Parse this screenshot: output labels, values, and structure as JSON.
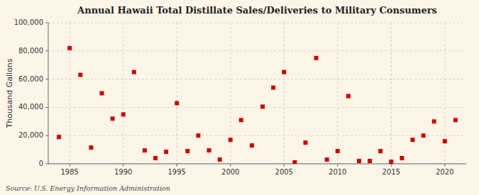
{
  "chart_data": {
    "type": "scatter",
    "title": "Annual Hawaii Total Distillate Sales/Deliveries to Military Consumers",
    "ylabel": "Thousand Gallons",
    "annotations": [
      "Source: U.S. Energy Information Administration"
    ],
    "x": [
      1984,
      1985,
      1986,
      1987,
      1988,
      1989,
      1990,
      1991,
      1992,
      1993,
      1994,
      1995,
      1996,
      1997,
      1998,
      1999,
      2000,
      2001,
      2002,
      2003,
      2004,
      2005,
      2006,
      2007,
      2008,
      2009,
      2010,
      2011,
      2012,
      2013,
      2014,
      2015,
      2016,
      2017,
      2018,
      2019,
      2020,
      2021
    ],
    "values": [
      19000,
      82000,
      63000,
      11500,
      50000,
      32000,
      35000,
      65000,
      9500,
      4000,
      8500,
      43000,
      9000,
      20000,
      9500,
      3000,
      17000,
      31000,
      13000,
      40500,
      54000,
      65000,
      1000,
      15000,
      75000,
      3000,
      9000,
      48000,
      2000,
      2000,
      9000,
      1500,
      4000,
      17000,
      20000,
      30000,
      16000,
      31000
    ],
    "color": "#cc0000",
    "marker": "square",
    "xlim": [
      1983,
      2022
    ],
    "ylim": [
      0,
      100000
    ],
    "xticks": [
      1985,
      1990,
      1995,
      2000,
      2005,
      2010,
      2015,
      2020
    ],
    "yticks": [
      0,
      {
        "value": 20000,
        "label": "20,000"
      },
      {
        "value": 40000,
        "label": "40,000"
      },
      {
        "value": 60000,
        "label": "60,000"
      },
      {
        "value": 80000,
        "label": "80,000"
      },
      {
        "value": 100000,
        "label": "100,000"
      }
    ],
    "grid": true
  }
}
